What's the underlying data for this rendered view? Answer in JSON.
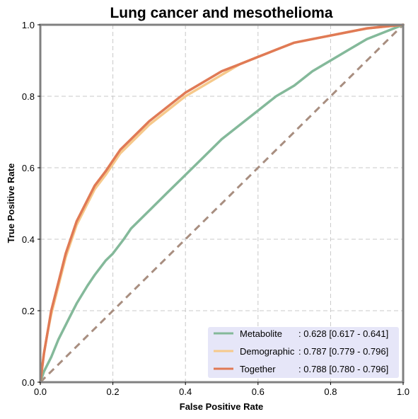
{
  "chart_data": {
    "type": "line",
    "title": "Lung cancer and mesothelioma",
    "xlabel": "False Positive Rate",
    "ylabel": "True Positive Rate",
    "xlim": [
      0,
      1
    ],
    "ylim": [
      0,
      1
    ],
    "xticks": [
      "0.0",
      "0.2",
      "0.4",
      "0.6",
      "0.8",
      "1.0"
    ],
    "yticks": [
      "0.0",
      "0.2",
      "0.4",
      "0.6",
      "0.8",
      "1.0"
    ],
    "grid": true,
    "legend_position": "lower-right",
    "legend_background": "#e6e6f8",
    "series": [
      {
        "name": "Metabolite",
        "label": ": 0.628 [0.617 - 0.641]",
        "color": "#84b99a",
        "x": [
          0,
          0.01,
          0.03,
          0.05,
          0.08,
          0.1,
          0.13,
          0.15,
          0.18,
          0.2,
          0.23,
          0.25,
          0.3,
          0.35,
          0.4,
          0.45,
          0.5,
          0.55,
          0.6,
          0.65,
          0.7,
          0.75,
          0.8,
          0.85,
          0.9,
          0.95,
          1.0
        ],
        "y": [
          0,
          0.03,
          0.07,
          0.12,
          0.18,
          0.22,
          0.27,
          0.3,
          0.34,
          0.36,
          0.4,
          0.43,
          0.48,
          0.53,
          0.58,
          0.63,
          0.68,
          0.72,
          0.76,
          0.8,
          0.83,
          0.87,
          0.9,
          0.93,
          0.96,
          0.98,
          1.0
        ]
      },
      {
        "name": "Demographic",
        "label": ": 0.787 [0.779 - 0.796]",
        "color": "#f6c98b",
        "x": [
          0,
          0.01,
          0.02,
          0.03,
          0.05,
          0.07,
          0.1,
          0.13,
          0.15,
          0.18,
          0.2,
          0.22,
          0.25,
          0.3,
          0.35,
          0.4,
          0.45,
          0.5,
          0.55,
          0.6,
          0.65,
          0.7,
          0.75,
          0.8,
          0.85,
          0.9,
          0.95,
          1.0
        ],
        "y": [
          0,
          0.08,
          0.14,
          0.19,
          0.27,
          0.35,
          0.44,
          0.5,
          0.54,
          0.58,
          0.61,
          0.64,
          0.67,
          0.72,
          0.76,
          0.8,
          0.83,
          0.86,
          0.89,
          0.91,
          0.93,
          0.95,
          0.96,
          0.97,
          0.98,
          0.99,
          0.995,
          1.0
        ]
      },
      {
        "name": "Together",
        "label": ": 0.788 [0.780 - 0.796]",
        "color": "#e07a55",
        "x": [
          0,
          0.01,
          0.02,
          0.03,
          0.05,
          0.07,
          0.1,
          0.13,
          0.15,
          0.18,
          0.2,
          0.22,
          0.25,
          0.3,
          0.35,
          0.4,
          0.45,
          0.5,
          0.55,
          0.6,
          0.65,
          0.7,
          0.75,
          0.8,
          0.85,
          0.9,
          0.95,
          1.0
        ],
        "y": [
          0,
          0.08,
          0.14,
          0.2,
          0.28,
          0.36,
          0.45,
          0.51,
          0.55,
          0.59,
          0.62,
          0.65,
          0.68,
          0.73,
          0.77,
          0.81,
          0.84,
          0.87,
          0.89,
          0.91,
          0.93,
          0.95,
          0.96,
          0.97,
          0.98,
          0.99,
          0.995,
          1.0
        ]
      }
    ],
    "reference_line": {
      "x": [
        0,
        1
      ],
      "y": [
        0,
        1
      ],
      "color": "#a88e80",
      "style": "dashed"
    }
  }
}
